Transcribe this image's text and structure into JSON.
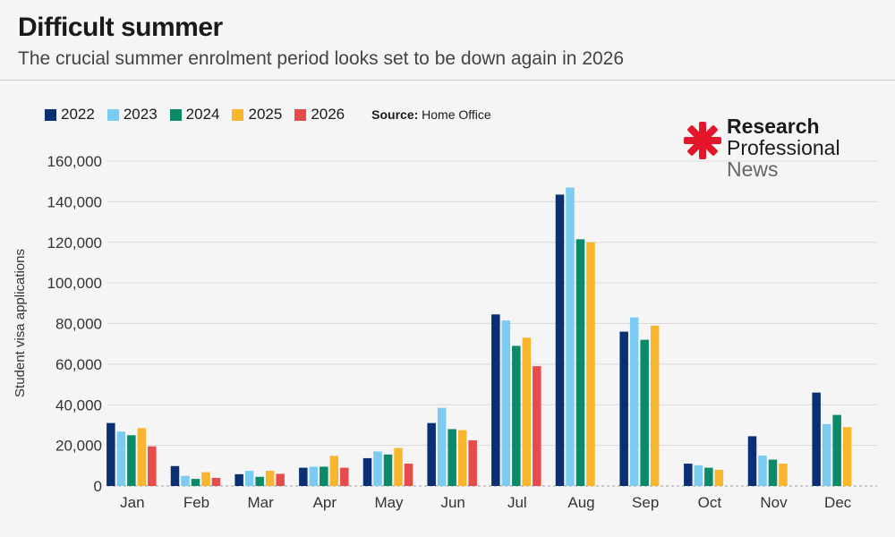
{
  "header": {
    "title": "Difficult summer",
    "subtitle": "The crucial summer enrolment period looks set to be down again in 2026"
  },
  "legend": {
    "source_label": "Source:",
    "source_value": "Home Office"
  },
  "logo": {
    "line1": "Research",
    "line2": "Professional",
    "line3": "News",
    "mark_color": "#e3162b"
  },
  "chart_data": {
    "type": "bar",
    "title": "Difficult summer",
    "subtitle": "The crucial summer enrolment period looks set to be down again in 2026",
    "ylabel": "Student visa applications",
    "xlabel": "",
    "ylim": [
      0,
      160000
    ],
    "yticks": [
      0,
      20000,
      40000,
      60000,
      80000,
      100000,
      120000,
      140000,
      160000
    ],
    "ytick_labels": [
      "0",
      "20,000",
      "40,000",
      "60,000",
      "80,000",
      "100,000",
      "120,000",
      "140,000",
      "160,000"
    ],
    "grid": true,
    "legend_position": "top-left",
    "categories": [
      "Jan",
      "Feb",
      "Mar",
      "Apr",
      "May",
      "Jun",
      "Jul",
      "Aug",
      "Sep",
      "Oct",
      "Nov",
      "Dec"
    ],
    "series": [
      {
        "name": "2022",
        "color": "#0b2f73",
        "values": [
          31000,
          9800,
          5800,
          9000,
          13700,
          31000,
          84500,
          143500,
          76000,
          11000,
          24500,
          46000
        ]
      },
      {
        "name": "2023",
        "color": "#7ccbf2",
        "values": [
          26800,
          5000,
          7500,
          9500,
          17000,
          38500,
          81500,
          147000,
          83000,
          10200,
          15000,
          30500
        ]
      },
      {
        "name": "2024",
        "color": "#0b8a6a",
        "values": [
          25000,
          3500,
          4500,
          9500,
          15500,
          28000,
          69000,
          121500,
          72000,
          9000,
          13000,
          35000
        ]
      },
      {
        "name": "2025",
        "color": "#fab52f",
        "values": [
          28500,
          6800,
          7500,
          14800,
          18700,
          27500,
          73000,
          120000,
          79000,
          8000,
          11000,
          29000
        ]
      },
      {
        "name": "2026",
        "color": "#e84b4b",
        "values": [
          19500,
          4000,
          6000,
          9000,
          11000,
          22500,
          59000,
          null,
          null,
          null,
          null,
          null
        ]
      }
    ]
  }
}
